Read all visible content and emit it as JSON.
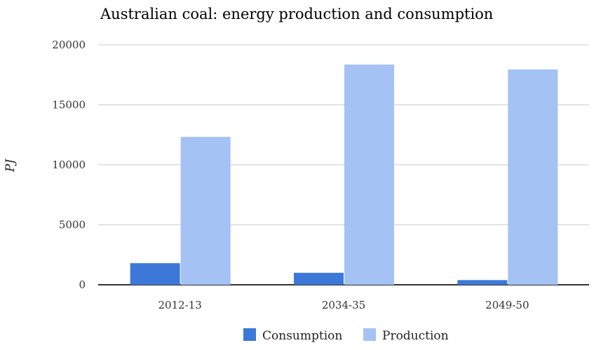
{
  "chart_data": {
    "type": "bar",
    "title": "Australian coal: energy production and consumption",
    "xlabel": "",
    "ylabel": "PJ",
    "ylim": [
      0,
      20000
    ],
    "yticks": [
      "0",
      "5000",
      "10000",
      "15000",
      "20000"
    ],
    "categories": [
      "2012-13",
      "2034-35",
      "2049-50"
    ],
    "series": [
      {
        "name": "Consumption",
        "color": "#3c78d8",
        "values": [
          1800,
          1000,
          390
        ]
      },
      {
        "name": "Production",
        "color": "#a4c2f4",
        "values": [
          12330,
          18360,
          17950
        ]
      }
    ],
    "grid": true,
    "legend": "bottom"
  }
}
